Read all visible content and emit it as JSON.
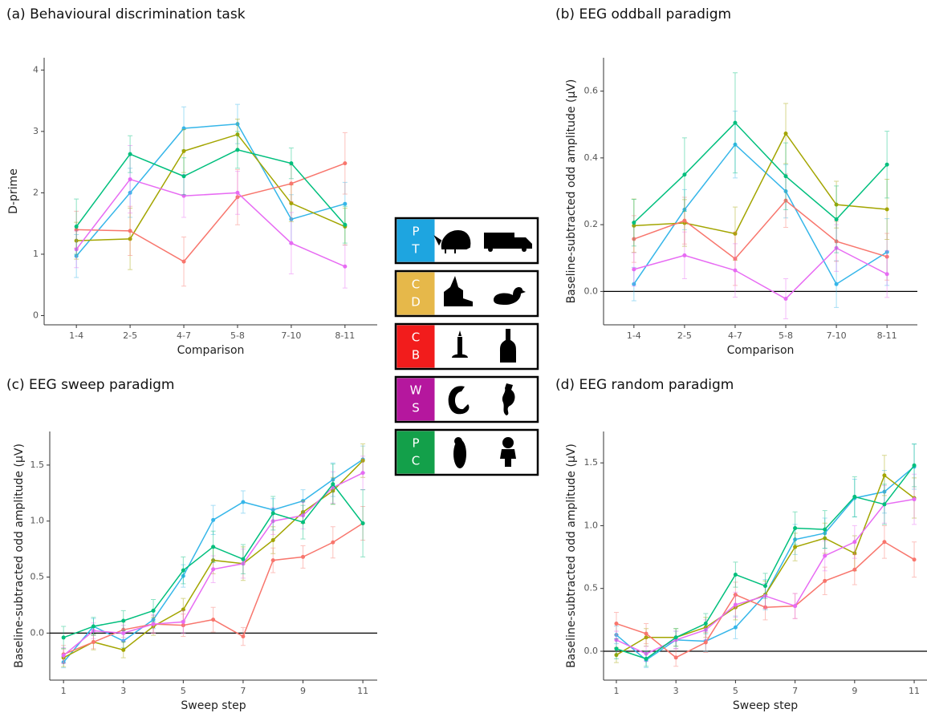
{
  "chart_data": [
    {
      "type": "line",
      "title": "(a) Behavioural discrimination task",
      "ylabel": "D-prime",
      "xlabel": "Comparison",
      "categories": [
        "1-4",
        "2-5",
        "4-7",
        "5-8",
        "7-10",
        "8-11"
      ],
      "ylim": [
        -0.15,
        4.2
      ],
      "yticks": [
        0,
        1,
        2,
        3,
        4
      ],
      "series": [
        {
          "color": "#35b6e9",
          "values": [
            0.97,
            2.0,
            3.05,
            3.12,
            1.57,
            1.82
          ],
          "errors": [
            0.35,
            0.4,
            0.35,
            0.32,
            0.4,
            0.35
          ]
        },
        {
          "color": "#a3a500",
          "values": [
            1.22,
            1.25,
            2.68,
            2.95,
            1.83,
            1.45
          ],
          "errors": [
            0.3,
            0.5,
            0.35,
            0.25,
            0.3,
            0.3
          ]
        },
        {
          "color": "#f8766d",
          "values": [
            1.4,
            1.38,
            0.88,
            1.93,
            2.15,
            2.48
          ],
          "errors": [
            0.3,
            0.4,
            0.4,
            0.45,
            0.3,
            0.5
          ]
        },
        {
          "color": "#e76bf3",
          "values": [
            1.08,
            2.22,
            1.95,
            2.0,
            1.18,
            0.8
          ],
          "errors": [
            0.3,
            0.55,
            0.35,
            0.35,
            0.5,
            0.35
          ]
        },
        {
          "color": "#00bf7d",
          "values": [
            1.45,
            2.63,
            2.27,
            2.7,
            2.48,
            1.48
          ],
          "errors": [
            0.45,
            0.3,
            0.3,
            0.3,
            0.25,
            0.3
          ]
        }
      ]
    },
    {
      "type": "line",
      "title": "(b) EEG oddball paradigm",
      "ylabel": "Baseline-subtracted odd amplitude (µV)",
      "xlabel": "Comparison",
      "categories": [
        "1-4",
        "2-5",
        "4-7",
        "5-8",
        "7-10",
        "8-11"
      ],
      "ylim": [
        -0.1,
        0.7
      ],
      "yticks": [
        {
          "value": 0,
          "label": "0.0"
        },
        {
          "value": 0.2,
          "label": "0.2"
        },
        {
          "value": 0.4,
          "label": "0.4"
        },
        {
          "value": 0.6,
          "label": "0.6"
        }
      ],
      "hline": 0,
      "series": [
        {
          "color": "#35b6e9",
          "values": [
            0.022,
            0.245,
            0.44,
            0.3,
            0.022,
            0.118
          ],
          "errors": [
            0.05,
            0.06,
            0.1,
            0.08,
            0.07,
            0.1
          ]
        },
        {
          "color": "#a3a500",
          "values": [
            0.197,
            0.205,
            0.173,
            0.473,
            0.26,
            0.246
          ],
          "errors": [
            0.08,
            0.07,
            0.08,
            0.09,
            0.07,
            0.09
          ]
        },
        {
          "color": "#f8766d",
          "values": [
            0.157,
            0.212,
            0.098,
            0.272,
            0.15,
            0.104
          ],
          "errors": [
            0.07,
            0.07,
            0.08,
            0.08,
            0.06,
            0.07
          ]
        },
        {
          "color": "#e76bf3",
          "values": [
            0.066,
            0.108,
            0.063,
            -0.022,
            0.13,
            0.052
          ],
          "errors": [
            0.05,
            0.07,
            0.08,
            0.06,
            0.07,
            0.07
          ]
        },
        {
          "color": "#00bf7d",
          "values": [
            0.206,
            0.35,
            0.505,
            0.345,
            0.216,
            0.38
          ],
          "errors": [
            0.07,
            0.11,
            0.15,
            0.1,
            0.1,
            0.1
          ]
        }
      ]
    },
    {
      "type": "line",
      "title": "(c) EEG sweep paradigm",
      "ylabel": "Baseline-subtracted odd amplitude (µV)",
      "xlabel": "Sweep step",
      "x": [
        1,
        2,
        3,
        4,
        5,
        6,
        7,
        8,
        9,
        10,
        11
      ],
      "xlim": [
        0.54,
        11.48
      ],
      "xticks": [
        1,
        3,
        5,
        7,
        9,
        11
      ],
      "ylim": [
        -0.42,
        1.8
      ],
      "yticks": [
        {
          "value": 0,
          "label": "0.0"
        },
        {
          "value": 0.5,
          "label": "0.5"
        },
        {
          "value": 1,
          "label": "1.0"
        },
        {
          "value": 1.5,
          "label": "1.5"
        }
      ],
      "hline": 0,
      "series": [
        {
          "color": "#35b6e9",
          "values": [
            -0.26,
            0.06,
            -0.07,
            0.12,
            0.51,
            1.01,
            1.17,
            1.1,
            1.18,
            1.37,
            1.55
          ],
          "errors": [
            0.05,
            0.07,
            0.06,
            0.08,
            0.1,
            0.13,
            0.1,
            0.1,
            0.1,
            0.15,
            0.12
          ]
        },
        {
          "color": "#a3a500",
          "values": [
            -0.22,
            -0.08,
            -0.15,
            0.06,
            0.21,
            0.65,
            0.62,
            0.83,
            1.08,
            1.27,
            1.54
          ],
          "errors": [
            0.08,
            0.07,
            0.07,
            0.08,
            0.1,
            0.12,
            0.15,
            0.12,
            0.1,
            0.12,
            0.15
          ]
        },
        {
          "color": "#f8766d",
          "values": [
            -0.19,
            -0.08,
            0.03,
            0.08,
            0.07,
            0.12,
            -0.03,
            0.65,
            0.68,
            0.81,
            0.98
          ],
          "errors": [
            0.08,
            0.06,
            0.07,
            0.08,
            0.1,
            0.11,
            0.08,
            0.11,
            0.1,
            0.14,
            0.15
          ]
        },
        {
          "color": "#e76bf3",
          "values": [
            -0.2,
            0.02,
            0.0,
            0.08,
            0.1,
            0.57,
            0.62,
            1.0,
            1.05,
            1.3,
            1.43
          ],
          "errors": [
            0.07,
            0.07,
            0.07,
            0.08,
            0.1,
            0.12,
            0.13,
            0.12,
            0.12,
            0.14,
            0.15
          ]
        },
        {
          "color": "#00bf7d",
          "values": [
            -0.04,
            0.06,
            0.11,
            0.2,
            0.56,
            0.77,
            0.66,
            1.07,
            0.99,
            1.33,
            0.98
          ],
          "errors": [
            0.1,
            0.08,
            0.09,
            0.1,
            0.12,
            0.14,
            0.13,
            0.15,
            0.15,
            0.18,
            0.3
          ]
        }
      ]
    },
    {
      "type": "line",
      "title": "(d) EEG random paradigm",
      "ylabel": "Baseline-subtracted odd amplitude (µV)",
      "xlabel": "Sweep step",
      "x": [
        1,
        2,
        3,
        4,
        5,
        6,
        7,
        8,
        9,
        10,
        11
      ],
      "xlim": [
        0.57,
        11.43
      ],
      "xticks": [
        1,
        3,
        5,
        7,
        9,
        11
      ],
      "ylim": [
        -0.23,
        1.75
      ],
      "yticks": [
        {
          "value": 0,
          "label": "0.0"
        },
        {
          "value": 0.5,
          "label": "0.5"
        },
        {
          "value": 1,
          "label": "1.0"
        },
        {
          "value": 1.5,
          "label": "1.5"
        }
      ],
      "hline": 0,
      "series": [
        {
          "color": "#35b6e9",
          "values": [
            0.13,
            -0.07,
            0.09,
            0.08,
            0.19,
            0.45,
            0.89,
            0.94,
            1.22,
            1.27,
            1.47
          ],
          "errors": [
            0.07,
            0.06,
            0.07,
            0.08,
            0.09,
            0.12,
            0.12,
            0.12,
            0.15,
            0.17,
            0.18
          ]
        },
        {
          "color": "#a3a500",
          "values": [
            -0.03,
            0.11,
            0.11,
            0.19,
            0.35,
            0.45,
            0.83,
            0.9,
            0.78,
            1.4,
            1.22
          ],
          "errors": [
            0.06,
            0.07,
            0.07,
            0.08,
            0.1,
            0.11,
            0.11,
            0.12,
            0.14,
            0.16,
            0.16
          ]
        },
        {
          "color": "#f8766d",
          "values": [
            0.22,
            0.14,
            -0.05,
            0.07,
            0.45,
            0.35,
            0.36,
            0.56,
            0.65,
            0.87,
            0.73
          ],
          "errors": [
            0.09,
            0.08,
            0.07,
            0.08,
            0.1,
            0.1,
            0.1,
            0.11,
            0.12,
            0.13,
            0.14
          ]
        },
        {
          "color": "#e76bf3",
          "values": [
            0.09,
            -0.02,
            0.09,
            0.17,
            0.37,
            0.44,
            0.36,
            0.76,
            0.87,
            1.17,
            1.21
          ],
          "errors": [
            0.07,
            0.06,
            0.07,
            0.08,
            0.1,
            0.1,
            0.1,
            0.12,
            0.13,
            0.15,
            0.2
          ]
        },
        {
          "color": "#00bf7d",
          "values": [
            0.02,
            -0.06,
            0.11,
            0.22,
            0.61,
            0.52,
            0.98,
            0.97,
            1.23,
            1.17,
            1.48
          ],
          "errors": [
            0.08,
            0.06,
            0.07,
            0.08,
            0.1,
            0.1,
            0.13,
            0.15,
            0.16,
            0.16,
            0.17
          ]
        }
      ]
    }
  ],
  "legend": [
    {
      "letters": [
        "P",
        "T"
      ],
      "color": "#1ea5e0"
    },
    {
      "letters": [
        "C",
        "D"
      ],
      "color": "#e6b84a"
    },
    {
      "letters": [
        "C",
        "B"
      ],
      "color": "#f21c1c"
    },
    {
      "letters": [
        "W",
        "S"
      ],
      "color": "#b5179e"
    },
    {
      "letters": [
        "P",
        "C"
      ],
      "color": "#13a04a"
    }
  ]
}
